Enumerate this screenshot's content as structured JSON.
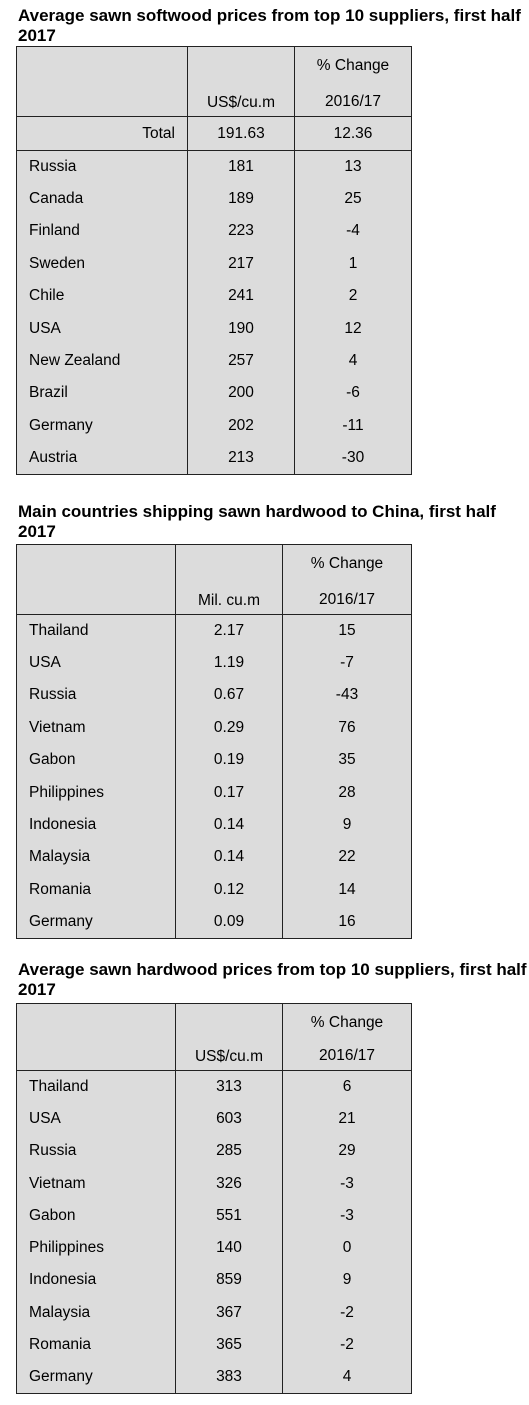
{
  "tables": [
    {
      "title": "Average sawn softwood prices from top 10 suppliers, first half 2017",
      "unit": "US$/cu.m",
      "change_label": "% Change",
      "change_period": "2016/17",
      "total": {
        "label": "Total",
        "value": "191.63",
        "change": "12.36"
      },
      "rows": [
        {
          "country": "Russia",
          "value": "181",
          "change": "13"
        },
        {
          "country": "Canada",
          "value": "189",
          "change": "25"
        },
        {
          "country": "Finland",
          "value": "223",
          "change": "-4"
        },
        {
          "country": "Sweden",
          "value": "217",
          "change": "1"
        },
        {
          "country": "Chile",
          "value": "241",
          "change": "2"
        },
        {
          "country": "USA",
          "value": "190",
          "change": "12"
        },
        {
          "country": "New Zealand",
          "value": "257",
          "change": "4"
        },
        {
          "country": "Brazil",
          "value": "200",
          "change": "-6"
        },
        {
          "country": "Germany",
          "value": "202",
          "change": "-11"
        },
        {
          "country": "Austria",
          "value": "213",
          "change": "-30"
        }
      ]
    },
    {
      "title": "Main countries shipping sawn hardwood to China, first half 2017",
      "unit": "Mil. cu.m",
      "change_label": "% Change",
      "change_period": "2016/17",
      "rows": [
        {
          "country": "Thailand",
          "value": "2.17",
          "change": "15"
        },
        {
          "country": "USA",
          "value": "1.19",
          "change": "-7"
        },
        {
          "country": "Russia",
          "value": "0.67",
          "change": "-43"
        },
        {
          "country": "Vietnam",
          "value": "0.29",
          "change": "76"
        },
        {
          "country": "Gabon",
          "value": "0.19",
          "change": "35"
        },
        {
          "country": "Philippines",
          "value": "0.17",
          "change": "28"
        },
        {
          "country": "Indonesia",
          "value": "0.14",
          "change": "9"
        },
        {
          "country": "Malaysia",
          "value": "0.14",
          "change": "22"
        },
        {
          "country": "Romania",
          "value": "0.12",
          "change": "14"
        },
        {
          "country": "Germany",
          "value": "0.09",
          "change": "16"
        }
      ]
    },
    {
      "title": "Average sawn hardwood prices from top 10 suppliers, first half 2017",
      "unit": "US$/cu.m",
      "change_label": "% Change",
      "change_period": "2016/17",
      "rows": [
        {
          "country": "Thailand",
          "value": "313",
          "change": "6"
        },
        {
          "country": "USA",
          "value": "603",
          "change": "21"
        },
        {
          "country": "Russia",
          "value": "285",
          "change": "29"
        },
        {
          "country": "Vietnam",
          "value": "326",
          "change": "-3"
        },
        {
          "country": "Gabon",
          "value": "551",
          "change": "-3"
        },
        {
          "country": "Philippines",
          "value": "140",
          "change": "0"
        },
        {
          "country": "Indonesia",
          "value": "859",
          "change": "9"
        },
        {
          "country": "Malaysia",
          "value": "367",
          "change": "-2"
        },
        {
          "country": "Romania",
          "value": "365",
          "change": "-2"
        },
        {
          "country": "Germany",
          "value": "383",
          "change": "4"
        }
      ]
    }
  ]
}
